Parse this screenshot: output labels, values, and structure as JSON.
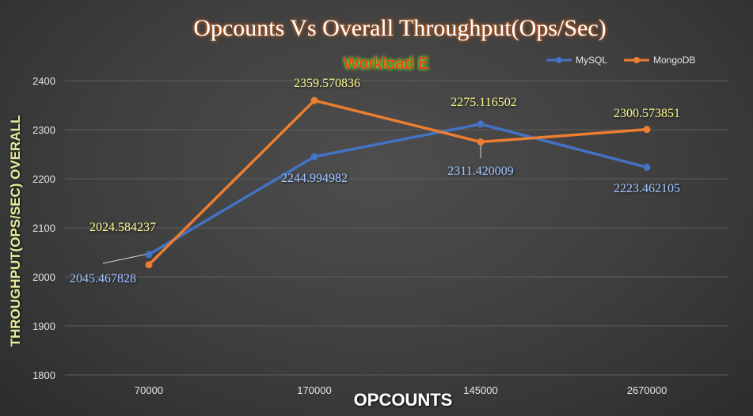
{
  "chart_data": {
    "type": "line",
    "title": "Opcounts Vs Overall Throughput(Ops/Sec)",
    "subtitle": "Workload E",
    "xlabel": "OPCOUNTS",
    "ylabel": "THROUGHPUT(OPS/SEC) OVERALL",
    "categories": [
      "70000",
      "170000",
      "145000",
      "2670000"
    ],
    "ylim": [
      1800,
      2400
    ],
    "yticks": [
      1800,
      1900,
      2000,
      2100,
      2200,
      2300,
      2400
    ],
    "grid": true,
    "legend_position": "top-right",
    "series": [
      {
        "name": "MySQL",
        "color": "#4472c4",
        "label_color": "#9dc3ff",
        "values": [
          2045.467828,
          2244.994982,
          2311.420009,
          2223.462105
        ],
        "labels": [
          "2045.467828",
          "2244.994982",
          "2311.420009",
          "2223.462105"
        ]
      },
      {
        "name": "MongoDB",
        "color": "#ed7d31",
        "label_color": "#f2f28c",
        "values": [
          2024.584237,
          2359.570836,
          2275.116502,
          2300.573851
        ],
        "labels": [
          "2024.584237",
          "2359.570836",
          "2275.116502",
          "2300.573851"
        ]
      }
    ]
  }
}
